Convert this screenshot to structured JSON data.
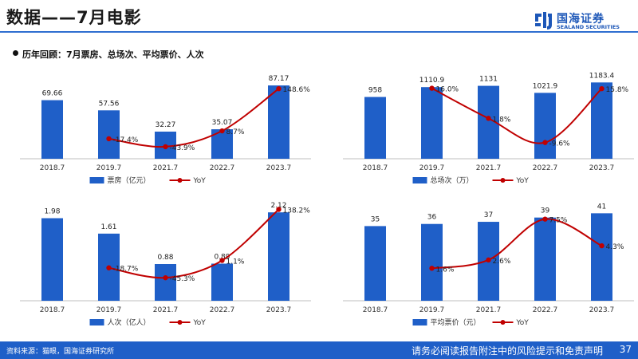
{
  "header": {
    "title": "数据——7月电影"
  },
  "logo": {
    "cn": "国海证券",
    "en": "SEALAND SECURITIES"
  },
  "subtitle": "历年回顾：7月票房、总场次、平均票价、人次",
  "footer": {
    "source": "资料来源：猫眼，国海证券研究所",
    "note": "请务必阅读报告附注中的风险提示和免责声明",
    "page": "37"
  },
  "colors": {
    "bar": "#1f5fc8",
    "line": "#c00000",
    "accent": "#2f6fd0"
  },
  "chart_data": [
    {
      "type": "bar",
      "categories": [
        "2018.7",
        "2019.7",
        "2021.7",
        "2022.7",
        "2023.7"
      ],
      "series": [
        {
          "name": "票房（亿元）",
          "type": "bar",
          "values": [
            69.66,
            57.56,
            32.27,
            35.07,
            87.17
          ],
          "labels": [
            "69.66",
            "57.56",
            "32.27",
            "35.07",
            "87.17"
          ]
        },
        {
          "name": "YoY",
          "type": "line",
          "values": [
            null,
            -17.4,
            -43.9,
            8.7,
            148.6
          ],
          "labels": [
            "",
            "-17.4%",
            "-43.9%",
            "8.7%",
            "148.6%"
          ]
        }
      ]
    },
    {
      "type": "bar",
      "categories": [
        "2018.7",
        "2019.7",
        "2021.7",
        "2022.7",
        "2023.7"
      ],
      "series": [
        {
          "name": "总场次（万）",
          "type": "bar",
          "values": [
            958,
            1110.9,
            1131,
            1021.9,
            1183.4
          ],
          "labels": [
            "958",
            "1110.9",
            "1131",
            "1021.9",
            "1183.4"
          ]
        },
        {
          "name": "YoY",
          "type": "line",
          "values": [
            null,
            16.0,
            1.8,
            -9.6,
            15.8
          ],
          "labels": [
            "",
            "16.0%",
            "1.8%",
            "-9.6%",
            "15.8%"
          ]
        }
      ]
    },
    {
      "type": "bar",
      "categories": [
        "2018.7",
        "2019.7",
        "2021.7",
        "2022.7",
        "2023.7"
      ],
      "series": [
        {
          "name": "人次（亿人）",
          "type": "bar",
          "values": [
            1.98,
            1.61,
            0.88,
            0.89,
            2.12
          ],
          "labels": [
            "1.98",
            "1.61",
            "0.88",
            "0.89",
            "2.12"
          ]
        },
        {
          "name": "YoY",
          "type": "line",
          "values": [
            null,
            -18.7,
            -45.3,
            1.1,
            138.2
          ],
          "labels": [
            "",
            "-18.7%",
            "-45.3%",
            "1.1%",
            "138.2%"
          ]
        }
      ]
    },
    {
      "type": "bar",
      "categories": [
        "2018.7",
        "2019.7",
        "2021.7",
        "2022.7",
        "2023.7"
      ],
      "series": [
        {
          "name": "平均票价（元）",
          "type": "bar",
          "values": [
            35,
            36,
            37,
            39,
            41
          ],
          "labels": [
            "35",
            "36",
            "37",
            "39",
            "41"
          ]
        },
        {
          "name": "YoY",
          "type": "line",
          "values": [
            null,
            1.6,
            2.6,
            7.5,
            4.3
          ],
          "labels": [
            "",
            "1.6%",
            "2.6%",
            "7.5%",
            "4.3%"
          ]
        }
      ]
    }
  ]
}
